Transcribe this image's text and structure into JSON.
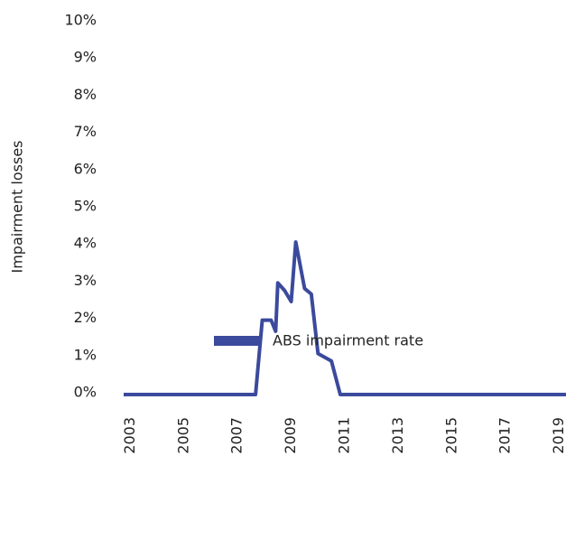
{
  "chart_data": {
    "type": "line",
    "y_label": "Impairment losses",
    "x": [
      2002.75,
      2007.67,
      2007.92,
      2008.25,
      2008.42,
      2008.5,
      2008.75,
      2009.0,
      2009.17,
      2009.5,
      2009.75,
      2010.0,
      2010.5,
      2010.83,
      2019.25
    ],
    "series": [
      {
        "name": "ABS impairment rate",
        "color": "#3b4a9c",
        "values": [
          0,
          0,
          2.0,
          2.0,
          1.7,
          3.0,
          2.8,
          2.5,
          4.1,
          2.85,
          2.7,
          1.1,
          0.9,
          0,
          0
        ]
      }
    ],
    "xlim": [
      2002.75,
      2019.25
    ],
    "xticks": [
      2003,
      2005,
      2007,
      2009,
      2011,
      2013,
      2015,
      2017,
      2019
    ],
    "ylim": [
      0,
      10
    ],
    "yticks": [
      {
        "value": 0,
        "label": "0%"
      },
      {
        "value": 1,
        "label": "1%"
      },
      {
        "value": 2,
        "label": "2%"
      },
      {
        "value": 3,
        "label": "3%"
      },
      {
        "value": 4,
        "label": "4%"
      },
      {
        "value": 5,
        "label": "5%"
      },
      {
        "value": 6,
        "label": "6%"
      },
      {
        "value": 7,
        "label": "7%"
      },
      {
        "value": 8,
        "label": "8%"
      },
      {
        "value": 9,
        "label": "9%"
      },
      {
        "value": 10,
        "label": "10%"
      }
    ],
    "legend": "bottom"
  }
}
